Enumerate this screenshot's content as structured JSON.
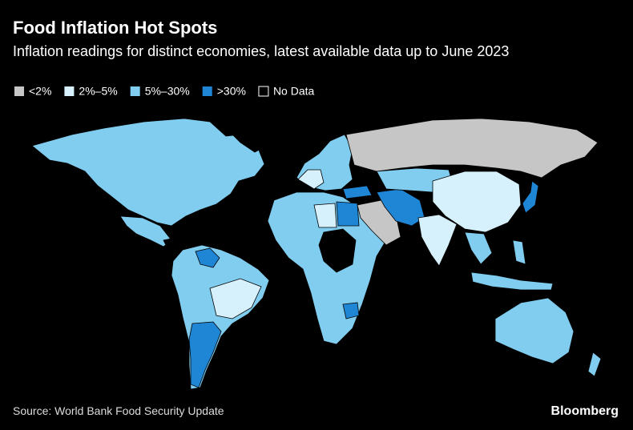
{
  "header": {
    "title": "Food Inflation Hot Spots",
    "subtitle": "Inflation readings for distinct economies, latest available data up to June 2023"
  },
  "legend": [
    {
      "label": "<2%",
      "color": "#c6c6c6"
    },
    {
      "label": "2%–5%",
      "color": "#d7f1fc"
    },
    {
      "label": "5%–30%",
      "color": "#80cdf0"
    },
    {
      "label": ">30%",
      "color": "#1f86d6"
    },
    {
      "label": "No Data",
      "color": "#000000"
    }
  ],
  "footer": {
    "source": "Source: World Bank Food Security Update",
    "brand": "Bloomberg"
  }
}
